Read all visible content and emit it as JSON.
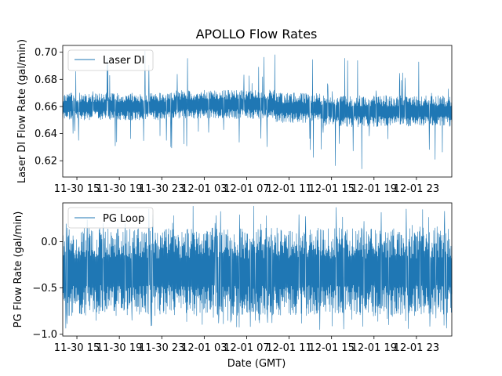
{
  "chart_data": [
    {
      "type": "line",
      "title": "APOLLO Flow Rates",
      "xlabel": "",
      "ylabel": "Laser DI Flow Rate (gal/min)",
      "ylim": [
        0.608,
        0.705
      ],
      "yticks": [
        0.62,
        0.64,
        0.66,
        0.68,
        0.7
      ],
      "ytick_labels": [
        "0.62",
        "0.64",
        "0.66",
        "0.68",
        "0.70"
      ],
      "x_range_hours": [
        0,
        55
      ],
      "xticks_hours": [
        2,
        8,
        14,
        20,
        26,
        32,
        38,
        44,
        50
      ],
      "xtick_labels": [
        "11-30 15",
        "11-30 19",
        "11-30 23",
        "12-01 03",
        "12-01 07",
        "12-01 11",
        "12-01 15",
        "12-01 19",
        "12-01 23"
      ],
      "legend": {
        "location": "top-left",
        "entries": [
          "Laser DI"
        ]
      },
      "series": [
        {
          "name": "Laser DI",
          "color": "#1f77b4",
          "segments": [
            {
              "start_h": 0,
              "end_h": 16,
              "low": 0.65,
              "high": 0.67,
              "min": 0.628,
              "max": 0.702
            },
            {
              "start_h": 16,
              "end_h": 30,
              "low": 0.651,
              "high": 0.672,
              "min": 0.63,
              "max": 0.702
            },
            {
              "start_h": 30,
              "end_h": 36.5,
              "low": 0.648,
              "high": 0.67,
              "min": 0.62,
              "max": 0.702
            },
            {
              "start_h": 36.5,
              "end_h": 55,
              "low": 0.645,
              "high": 0.668,
              "min": 0.612,
              "max": 0.701
            }
          ]
        }
      ]
    },
    {
      "type": "line",
      "title": "",
      "xlabel": "Date (GMT)",
      "ylabel": "PG Flow Rate (gal/min)",
      "ylim": [
        -1.02,
        0.42
      ],
      "yticks": [
        -1.0,
        -0.5,
        0.0
      ],
      "ytick_labels": [
        "−1.0",
        "−0.5",
        "0.0"
      ],
      "x_range_hours": [
        0,
        55
      ],
      "xticks_hours": [
        2,
        8,
        14,
        20,
        26,
        32,
        38,
        44,
        50
      ],
      "xtick_labels": [
        "11-30 15",
        "11-30 19",
        "11-30 23",
        "12-01 03",
        "12-01 07",
        "12-01 11",
        "12-01 15",
        "12-01 19",
        "12-01 23"
      ],
      "legend": {
        "location": "top-left",
        "entries": [
          "PG Loop"
        ]
      },
      "series": [
        {
          "name": "PG Loop",
          "color": "#1f77b4",
          "segments": [
            {
              "start_h": 0,
              "end_h": 55,
              "low": -0.8,
              "high": 0.15,
              "min": -0.95,
              "max": 0.4
            }
          ]
        }
      ]
    }
  ]
}
